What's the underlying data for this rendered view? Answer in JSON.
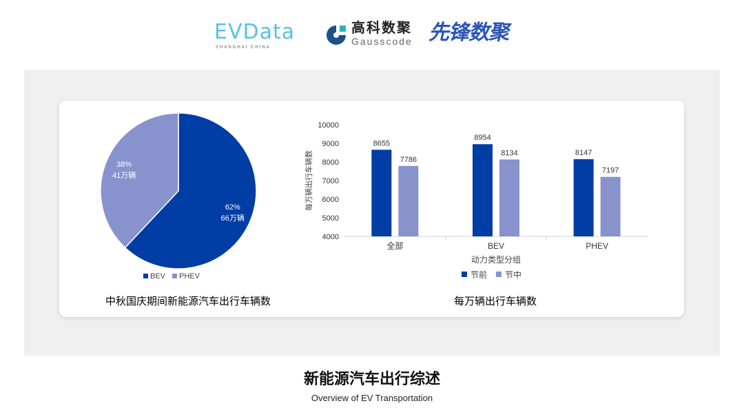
{
  "logos": {
    "evdata": "EVData",
    "evdata_sub": "SHANGHAI CHINA",
    "gauss_cn": "高科数聚",
    "gauss_en": "Gausscode",
    "xianfeng": "先锋数聚"
  },
  "colors": {
    "bev": "#003da5",
    "phev": "#8893cd",
    "panel": "#efefef"
  },
  "chart_data": [
    {
      "type": "pie",
      "title": "中秋国庆期间新能源汽车出行车辆数",
      "slices": [
        {
          "name": "BEV",
          "percent": 62,
          "label_pct": "62%",
          "label_val": "66万辆"
        },
        {
          "name": "PHEV",
          "percent": 38,
          "label_pct": "38%",
          "label_val": "41万辆"
        }
      ],
      "legend": [
        "BEV",
        "PHEV"
      ],
      "legend_position": "bottom"
    },
    {
      "type": "bar",
      "title": "每万辆出行车辆数",
      "xlabel": "动力类型分组",
      "ylabel": "每万辆出行车辆数",
      "categories": [
        "全部",
        "BEV",
        "PHEV"
      ],
      "series": [
        {
          "name": "节前",
          "values": [
            8655,
            8954,
            8147
          ]
        },
        {
          "name": "节中",
          "values": [
            7786,
            8134,
            7197
          ]
        }
      ],
      "ylim": [
        4000,
        10000
      ],
      "yticks": [
        4000,
        5000,
        6000,
        7000,
        8000,
        9000,
        10000
      ],
      "grid": false,
      "legend_position": "bottom"
    }
  ],
  "footer": {
    "title": "新能源汽车出行综述",
    "subtitle": "Overview of EV Transportation"
  }
}
